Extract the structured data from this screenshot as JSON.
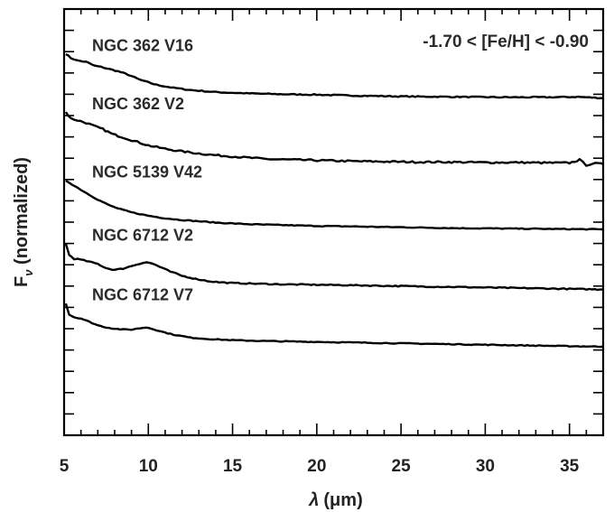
{
  "chart_data": {
    "type": "line",
    "title": "",
    "annotation": "-1.70 < [Fe/H] < -0.90",
    "xlabel_symbol": "λ",
    "xlabel_unit": "(μm)",
    "ylabel_main": "F",
    "ylabel_sub": "ν",
    "ylabel_rest": " (normalized)",
    "xlim": [
      5,
      37
    ],
    "ylim": [
      0,
      100
    ],
    "x_ticks": [
      5,
      10,
      15,
      20,
      25,
      30,
      35
    ],
    "x_minor_step": 1,
    "y_tick_count": 20,
    "grid": false,
    "series": [
      {
        "name": "NGC 362 V16",
        "x": [
          5.1,
          5.4,
          5.8,
          6.3,
          6.8,
          7.2,
          7.7,
          8.2,
          8.8,
          9.5,
          10.5,
          11.5,
          12.5,
          14,
          16,
          18,
          20,
          22,
          25,
          28,
          31,
          34,
          35.5,
          37
        ],
        "y": [
          89.5,
          88.5,
          87.9,
          87.6,
          86.7,
          86.4,
          85.9,
          85.4,
          84.6,
          83.4,
          82.2,
          81.5,
          81.0,
          80.5,
          80.2,
          80.0,
          79.9,
          79.7,
          79.5,
          79.4,
          79.3,
          79.3,
          79.4,
          79.1
        ],
        "noise": 0.25
      },
      {
        "name": "NGC 362 V2",
        "x": [
          5.1,
          5.4,
          5.8,
          6.3,
          6.8,
          7.3,
          7.9,
          8.5,
          9.2,
          10,
          11,
          12,
          13,
          14,
          15,
          16,
          17,
          18,
          19,
          20,
          22,
          24,
          26,
          28,
          30,
          32,
          34,
          35,
          35.6,
          36.0,
          36.4,
          37
        ],
        "y": [
          75.8,
          74.3,
          73.9,
          73.3,
          72.5,
          71.8,
          70.6,
          69.9,
          69.0,
          68.0,
          67.2,
          66.6,
          66.1,
          65.7,
          65.4,
          65.1,
          64.8,
          64.7,
          64.6,
          64.5,
          64.3,
          64.2,
          64.1,
          64.1,
          64.0,
          64.0,
          63.9,
          63.9,
          64.6,
          63.4,
          63.8,
          63.6
        ],
        "noise": 0.4
      },
      {
        "name": "NGC 5139 V42",
        "x": [
          5.1,
          5.5,
          6.0,
          6.5,
          7.0,
          7.6,
          8.2,
          9,
          10,
          11,
          12,
          13,
          14,
          15,
          16,
          18,
          20,
          22,
          25,
          28,
          31,
          34,
          37
        ],
        "y": [
          59.8,
          58.8,
          57.6,
          56.4,
          55.3,
          54.1,
          53.2,
          52.3,
          51.5,
          50.9,
          50.5,
          50.2,
          49.9,
          49.7,
          49.5,
          49.3,
          49.1,
          49.0,
          48.8,
          48.6,
          48.5,
          48.4,
          48.3
        ],
        "noise": 0.2
      },
      {
        "name": "NGC 6712 V2",
        "x": [
          5.1,
          5.3,
          5.6,
          6.0,
          6.5,
          7.0,
          7.5,
          8.0,
          8.5,
          9.0,
          9.5,
          9.9,
          10.3,
          10.8,
          11.3,
          12,
          12.8,
          13.5,
          14.2,
          15,
          16,
          18,
          20,
          22,
          25,
          28,
          31,
          34,
          37
        ],
        "y": [
          45.0,
          42.3,
          41.4,
          41.2,
          40.7,
          40.2,
          39.2,
          38.8,
          39.1,
          39.7,
          40.3,
          40.6,
          40.2,
          39.3,
          38.4,
          37.4,
          36.7,
          36.2,
          35.9,
          35.7,
          35.6,
          35.4,
          35.3,
          35.2,
          35.0,
          34.8,
          34.6,
          34.4,
          34.2
        ],
        "noise": 0.25
      },
      {
        "name": "NGC 6712 V7",
        "x": [
          5.1,
          5.3,
          5.6,
          6.0,
          6.5,
          7.0,
          7.5,
          8.0,
          8.5,
          9.0,
          9.5,
          9.9,
          10.3,
          10.8,
          11.5,
          12.5,
          13.5,
          15,
          17,
          20,
          23,
          26,
          29,
          32,
          35,
          37
        ],
        "y": [
          31.0,
          28.3,
          27.7,
          27.4,
          26.6,
          25.8,
          25.3,
          25.0,
          24.8,
          24.8,
          25.1,
          25.3,
          24.9,
          24.3,
          23.6,
          22.9,
          22.6,
          22.3,
          22.1,
          21.9,
          21.7,
          21.5,
          21.3,
          21.1,
          20.9,
          20.8
        ],
        "noise": 0.2
      }
    ]
  }
}
